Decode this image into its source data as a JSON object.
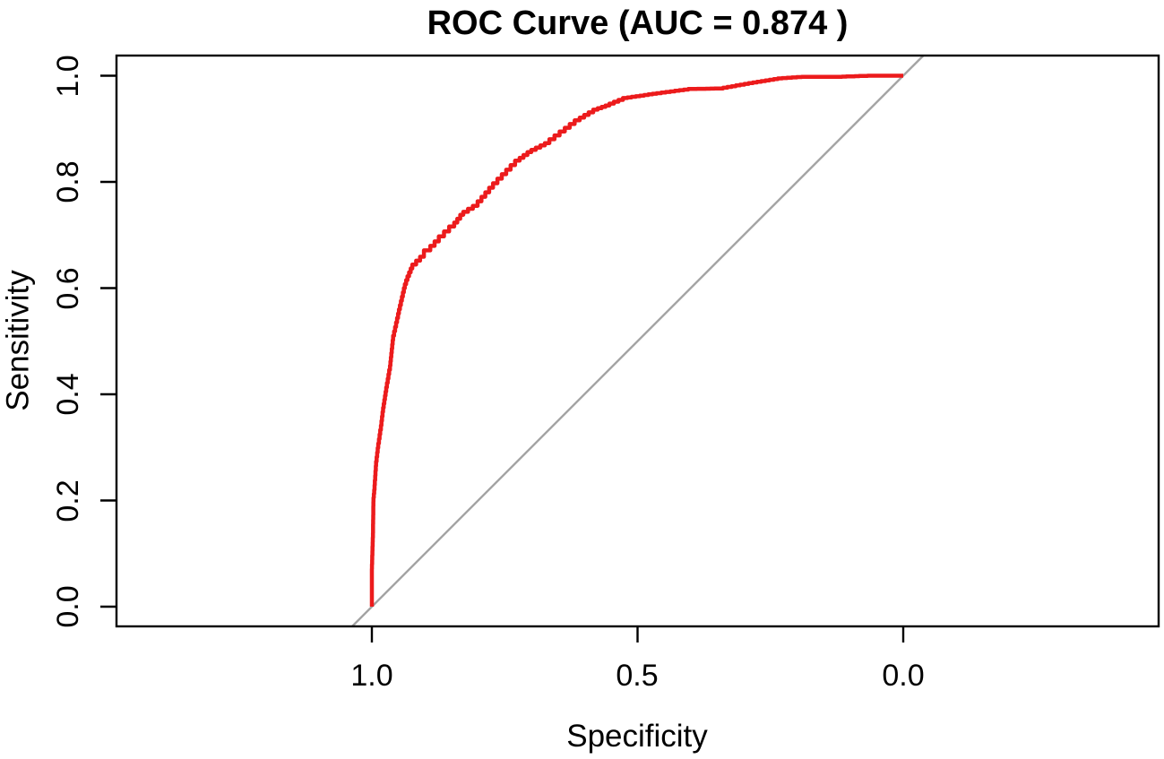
{
  "page": {
    "background": "#ffffff"
  },
  "chart_data": {
    "type": "line",
    "title": "ROC Curve (AUC = 0.874 )",
    "auc": "0.874",
    "grid": false,
    "legend": false,
    "x_axis": {
      "label": "Specificity",
      "tick_labels": [
        "1.0",
        "0.5",
        "0.0"
      ],
      "tick_values": [
        1.0,
        0.5,
        0.0
      ],
      "range": [
        1.0,
        0.0
      ],
      "reversed": true
    },
    "y_axis": {
      "label": "Sensitivity",
      "tick_labels": [
        "0.0",
        "0.2",
        "0.4",
        "0.6",
        "0.8",
        "1.0"
      ],
      "tick_values": [
        0.0,
        0.2,
        0.4,
        0.6,
        0.8,
        1.0
      ],
      "range": [
        0.0,
        1.0
      ]
    },
    "colors": {
      "roc_curve": "#EC1B1C",
      "chance_line": "#A3A3A3",
      "axis": "#000000",
      "text": "#000000"
    },
    "series": [
      {
        "name": "ROC curve",
        "draw": "step",
        "color": "#EC1B1C",
        "points": [
          [
            1.0,
            0.0
          ],
          [
            1.0,
            0.063
          ],
          [
            0.998,
            0.13
          ],
          [
            0.997,
            0.198
          ],
          [
            0.995,
            0.22
          ],
          [
            0.992,
            0.265
          ],
          [
            0.988,
            0.299
          ],
          [
            0.983,
            0.333
          ],
          [
            0.979,
            0.367
          ],
          [
            0.973,
            0.405
          ],
          [
            0.966,
            0.446
          ],
          [
            0.96,
            0.502
          ],
          [
            0.949,
            0.552
          ],
          [
            0.938,
            0.6
          ],
          [
            0.933,
            0.615
          ],
          [
            0.924,
            0.637
          ],
          [
            0.902,
            0.659
          ],
          [
            0.89,
            0.671
          ],
          [
            0.874,
            0.688
          ],
          [
            0.845,
            0.716
          ],
          [
            0.828,
            0.738
          ],
          [
            0.801,
            0.755
          ],
          [
            0.772,
            0.789
          ],
          [
            0.739,
            0.823
          ],
          [
            0.722,
            0.84
          ],
          [
            0.7,
            0.856
          ],
          [
            0.666,
            0.873
          ],
          [
            0.637,
            0.895
          ],
          [
            0.609,
            0.916
          ],
          [
            0.575,
            0.936
          ],
          [
            0.553,
            0.944
          ],
          [
            0.519,
            0.958
          ],
          [
            0.464,
            0.966
          ],
          [
            0.396,
            0.975
          ],
          [
            0.339,
            0.976
          ],
          [
            0.283,
            0.986
          ],
          [
            0.228,
            0.995
          ],
          [
            0.182,
            0.998
          ],
          [
            0.115,
            0.998
          ],
          [
            0.059,
            1.0
          ],
          [
            0.0,
            1.0
          ]
        ]
      },
      {
        "name": "Chance line",
        "draw": "line",
        "color": "#A3A3A3",
        "points": [
          [
            1.0,
            0.0
          ],
          [
            0.0,
            1.0
          ]
        ]
      }
    ]
  }
}
